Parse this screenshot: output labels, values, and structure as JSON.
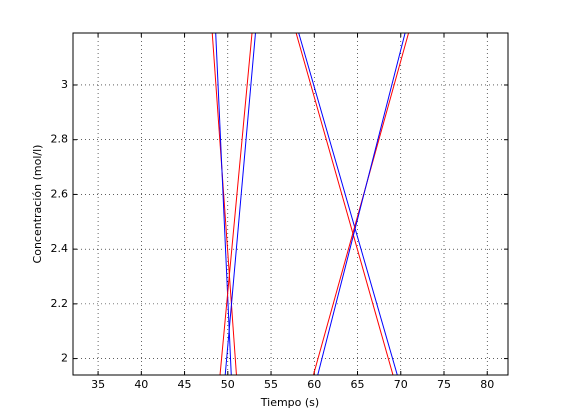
{
  "chart_data": {
    "type": "line",
    "xlabel": "Tiempo (s)",
    "ylabel": "Concentración (mol/l)",
    "xlim": [
      32.1,
      82.4
    ],
    "ylim": [
      1.94,
      3.19
    ],
    "xticks": [
      35,
      40,
      45,
      50,
      55,
      60,
      65,
      70,
      75,
      80
    ],
    "yticks": [
      2,
      2.2,
      2.4,
      2.6,
      2.8,
      3
    ],
    "grid": true,
    "series": [
      {
        "color": "#ff0000",
        "x": [
          48.2,
          51.0
        ],
        "values": [
          3.19,
          1.94
        ]
      },
      {
        "color": "#0000ff",
        "x": [
          48.6,
          50.4
        ],
        "values": [
          3.19,
          1.94
        ]
      },
      {
        "color": "#ff0000",
        "x": [
          52.8,
          49.1
        ],
        "values": [
          3.19,
          1.94
        ]
      },
      {
        "color": "#0000ff",
        "x": [
          53.2,
          49.7
        ],
        "values": [
          3.19,
          1.94
        ]
      },
      {
        "color": "#ff0000",
        "x": [
          57.9,
          69.1
        ],
        "values": [
          3.19,
          1.94
        ]
      },
      {
        "color": "#0000ff",
        "x": [
          58.2,
          69.6
        ],
        "values": [
          3.19,
          1.94
        ]
      },
      {
        "color": "#ff0000",
        "x": [
          70.9,
          59.9
        ],
        "values": [
          3.19,
          1.94
        ]
      },
      {
        "color": "#0000ff",
        "x": [
          70.5,
          60.4
        ],
        "values": [
          3.19,
          1.94
        ]
      }
    ]
  }
}
